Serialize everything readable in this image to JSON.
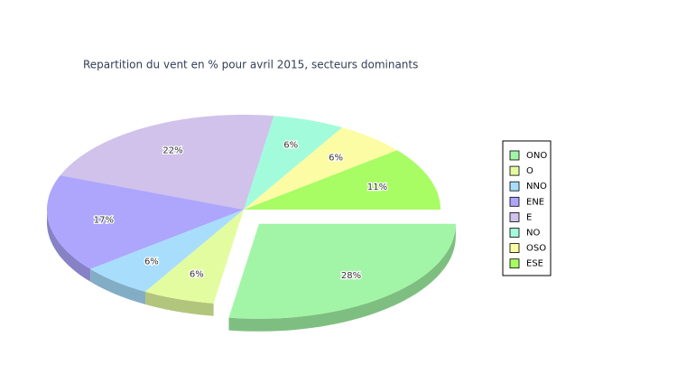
{
  "chart_data": {
    "type": "pie",
    "title": "Repartition du vent en % pour avril 2015, secteurs dominants",
    "categories": [
      "ONO",
      "O",
      "NNO",
      "ENE",
      "E",
      "NO",
      "OSO",
      "ESE"
    ],
    "values": [
      28,
      6,
      6,
      17,
      22,
      6,
      6,
      11
    ],
    "value_labels": [
      "28%",
      "6%",
      "6%",
      "17%",
      "22%",
      "6%",
      "6%",
      "11%"
    ],
    "colors": [
      "#a2f5a6",
      "#e4fca0",
      "#a8defc",
      "#ada6fc",
      "#d0c2ea",
      "#a2fcdc",
      "#fcfca4",
      "#a8fc64"
    ],
    "exploded": "ONO",
    "legend": "right"
  }
}
